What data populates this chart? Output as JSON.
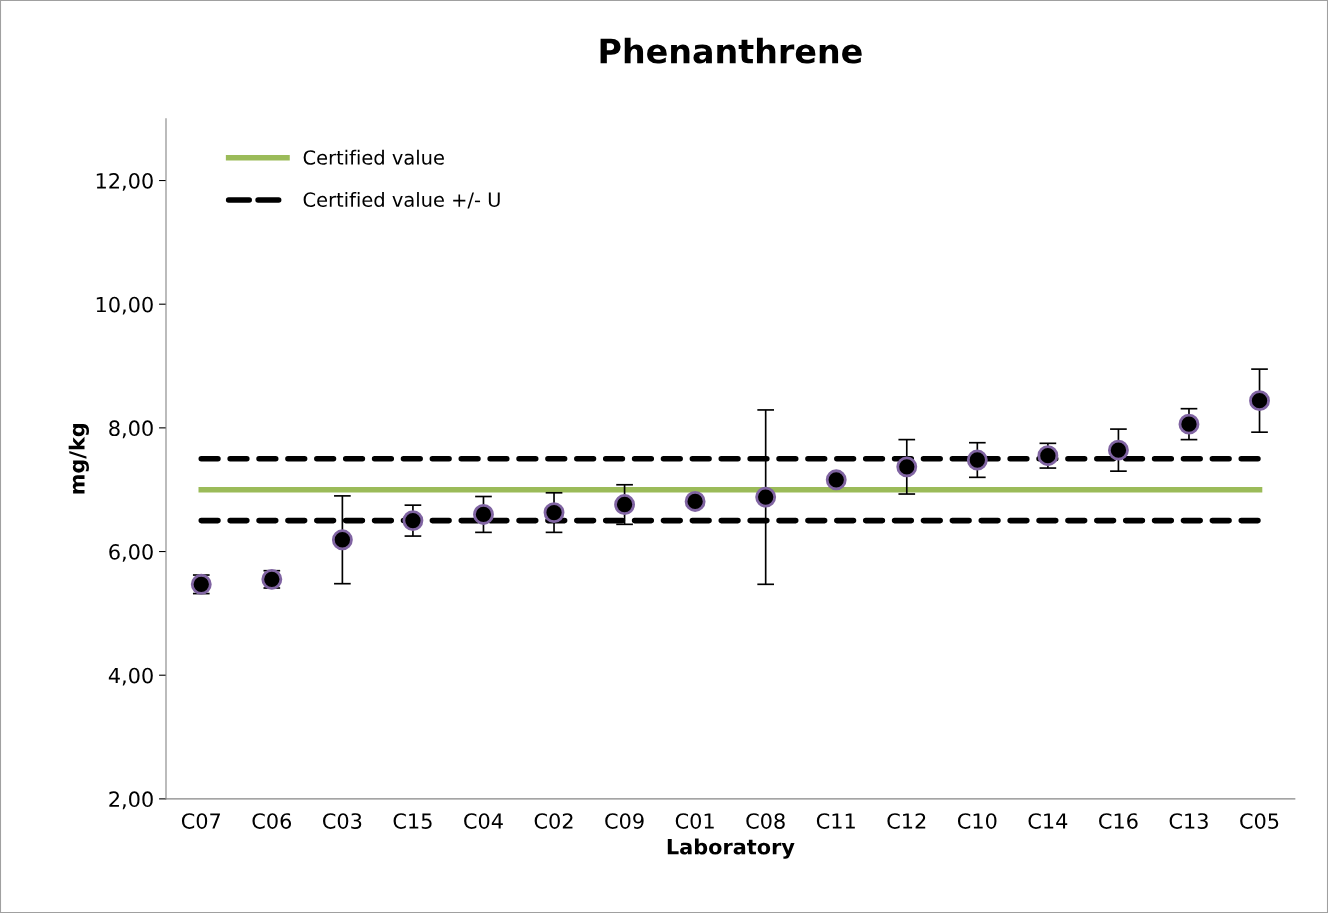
{
  "chart_data": {
    "type": "scatter",
    "title": "Phenanthrene",
    "xlabel": "Laboratory",
    "ylabel": "mg/kg",
    "categories": [
      "C07",
      "C06",
      "C03",
      "C15",
      "C04",
      "C02",
      "C09",
      "C01",
      "C08",
      "C11",
      "C12",
      "C10",
      "C14",
      "C16",
      "C13",
      "C05"
    ],
    "series": [
      {
        "name": "Certified value",
        "type": "line",
        "color": "#9bbb59",
        "line_style": "solid",
        "values": [
          7,
          7,
          7,
          7,
          7,
          7,
          7,
          7,
          7,
          7,
          7,
          7,
          7,
          7,
          7,
          7
        ]
      },
      {
        "name": "Certified value +/- U",
        "type": "line",
        "color": "#000000",
        "line_style": "dashed",
        "values": [
          7.5,
          7.5,
          7.5,
          7.5,
          7.5,
          7.5,
          7.5,
          7.5,
          7.5,
          7.5,
          7.5,
          7.5,
          7.5,
          7.5,
          7.5,
          7.5
        ]
      },
      {
        "type": "line",
        "color": "#000000",
        "line_style": "dashed",
        "values": [
          6.5,
          6.5,
          6.5,
          6.5,
          6.5,
          6.5,
          6.5,
          6.5,
          6.5,
          6.5,
          6.5,
          6.5,
          6.5,
          6.5,
          6.5,
          6.5
        ]
      },
      {
        "color": "#000000",
        "marker": "circle",
        "values": [
          5.47,
          5.55,
          6.19,
          6.5,
          6.6,
          6.63,
          6.76,
          6.81,
          6.88,
          7.16,
          7.37,
          7.48,
          7.55,
          7.64,
          8.06,
          8.44
        ],
        "errors": [
          0.15,
          0.14,
          0.71,
          0.25,
          0.29,
          0.32,
          0.32,
          0.05,
          1.41,
          null,
          0.44,
          0.28,
          0.2,
          0.34,
          0.25,
          0.51
        ]
      }
    ],
    "ylim": [
      2,
      13
    ],
    "yticks": [
      {
        "value": 2,
        "label": "2,00"
      },
      {
        "value": 4,
        "label": "4,00"
      },
      {
        "value": 6,
        "label": "6,00"
      },
      {
        "value": 8,
        "label": "8,00"
      },
      {
        "value": 10,
        "label": "10,00"
      },
      {
        "value": 12,
        "label": "12,00"
      }
    ],
    "grid": false,
    "legend": "top left"
  }
}
